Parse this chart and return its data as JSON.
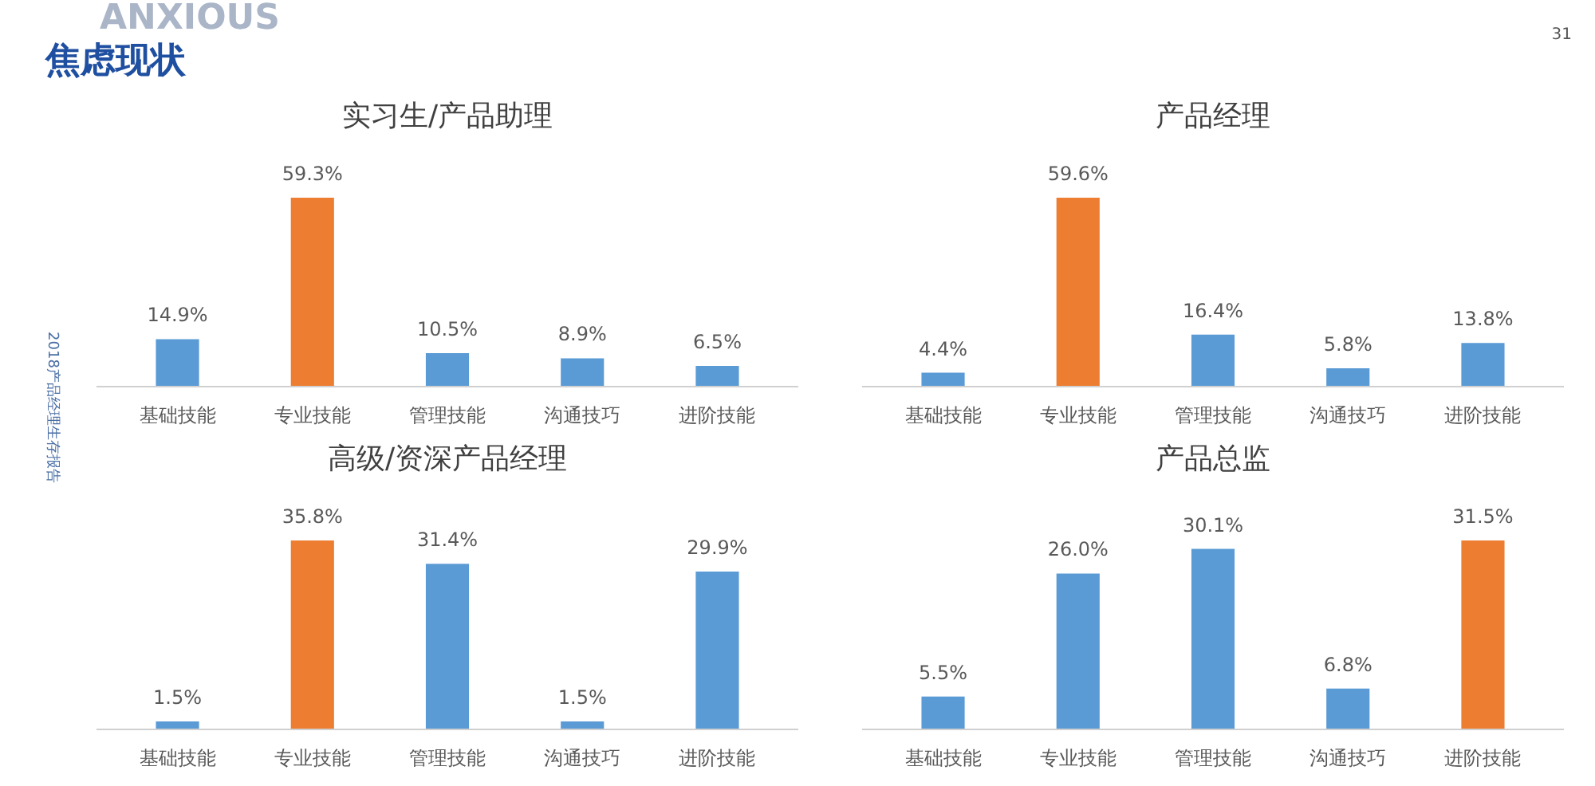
{
  "chart_data": [
    {
      "type": "other",
      "title": "焦虑现状",
      "annotations": [
        "ANXIOUS",
        "31",
        "2018产品经理生存报告"
      ]
    },
    {
      "type": "bar",
      "title": "实习生/产品助理",
      "categories": [
        "基础技能",
        "专业技能",
        "管理技能",
        "沟通技巧",
        "进阶技能"
      ],
      "values": [
        14.9,
        59.3,
        10.5,
        8.9,
        6.5
      ],
      "value_labels": [
        "14.9%",
        "59.3%",
        "10.5%",
        "8.9%",
        "6.5%"
      ],
      "colors": [
        "#5b9bd5",
        "#ed7d31",
        "#5b9bd5",
        "#5b9bd5",
        "#5b9bd5"
      ]
    },
    {
      "type": "bar",
      "title": "产品经理",
      "categories": [
        "基础技能",
        "专业技能",
        "管理技能",
        "沟通技巧",
        "进阶技能"
      ],
      "values": [
        4.4,
        59.6,
        16.4,
        5.8,
        13.8
      ],
      "value_labels": [
        "4.4%",
        "59.6%",
        "16.4%",
        "5.8%",
        "13.8%"
      ],
      "colors": [
        "#5b9bd5",
        "#ed7d31",
        "#5b9bd5",
        "#5b9bd5",
        "#5b9bd5"
      ]
    },
    {
      "type": "bar",
      "title": "高级/资深产品经理",
      "categories": [
        "基础技能",
        "专业技能",
        "管理技能",
        "沟通技巧",
        "进阶技能"
      ],
      "values": [
        1.5,
        35.8,
        31.4,
        1.5,
        29.9
      ],
      "value_labels": [
        "1.5%",
        "35.8%",
        "31.4%",
        "1.5%",
        "29.9%"
      ],
      "colors": [
        "#5b9bd5",
        "#ed7d31",
        "#5b9bd5",
        "#5b9bd5",
        "#5b9bd5"
      ]
    },
    {
      "type": "bar",
      "title": "产品总监",
      "categories": [
        "基础技能",
        "专业技能",
        "管理技能",
        "沟通技巧",
        "进阶技能"
      ],
      "values": [
        5.5,
        26.0,
        30.1,
        6.8,
        31.5
      ],
      "value_labels": [
        "5.5%",
        "26.0%",
        "30.1%",
        "6.8%",
        "31.5%"
      ],
      "colors": [
        "#5b9bd5",
        "#5b9bd5",
        "#5b9bd5",
        "#5b9bd5",
        "#ed7d31"
      ]
    }
  ]
}
